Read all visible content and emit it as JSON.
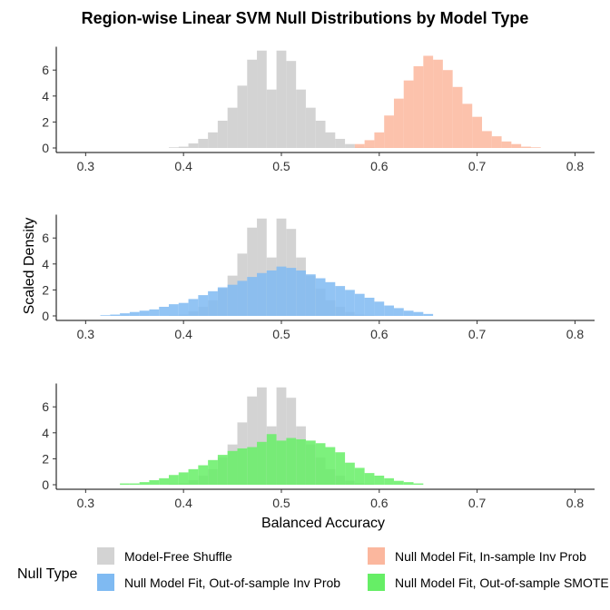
{
  "chart_data": {
    "type": "bar",
    "title": "Region-wise Linear SVM Null Distributions by Model Type",
    "xlabel": "Balanced Accuracy",
    "ylabel": "Scaled Density",
    "xlim": [
      0.27,
      0.82
    ],
    "ylim": [
      0,
      7.8
    ],
    "x_ticks": [
      0.3,
      0.4,
      0.5,
      0.6,
      0.7,
      0.8
    ],
    "y_ticks": [
      0,
      2,
      4,
      6
    ],
    "bin_width": 0.01,
    "grid": false,
    "legend": {
      "title": "Null Type",
      "position": "bottom",
      "entries": [
        {
          "label": "Model-Free Shuffle",
          "color": "#d3d3d3"
        },
        {
          "label": "Null Model Fit, In-sample Inv Prob",
          "color": "#fbb79e"
        },
        {
          "label": "Null Model Fit, Out-of-sample Inv Prob",
          "color": "#7fbaf2"
        },
        {
          "label": "Null Model Fit, Out-of-sample SMOTE",
          "color": "#66ee66"
        }
      ]
    },
    "shuffle": {
      "name": "Model-Free Shuffle",
      "color": "#d3d3d3",
      "x": [
        0.39,
        0.4,
        0.41,
        0.42,
        0.43,
        0.44,
        0.45,
        0.46,
        0.47,
        0.48,
        0.49,
        0.5,
        0.51,
        0.52,
        0.53,
        0.54,
        0.55,
        0.56,
        0.57,
        0.58,
        0.59
      ],
      "values": [
        0.05,
        0.1,
        0.35,
        0.7,
        1.2,
        2.1,
        3.1,
        4.8,
        6.8,
        7.5,
        4.5,
        7.5,
        6.7,
        4.5,
        3.1,
        2.1,
        1.2,
        0.7,
        0.3,
        0.1,
        0.05
      ]
    },
    "panels": [
      {
        "name": "Null Model Fit, In-sample Inv Prob",
        "color": "#fbb79e",
        "x": [
          0.58,
          0.59,
          0.6,
          0.61,
          0.62,
          0.63,
          0.64,
          0.65,
          0.66,
          0.67,
          0.68,
          0.69,
          0.7,
          0.71,
          0.72,
          0.73,
          0.74,
          0.75,
          0.76
        ],
        "values": [
          0.3,
          0.6,
          1.2,
          2.5,
          3.8,
          5.2,
          6.3,
          7.1,
          6.8,
          6.0,
          4.7,
          3.4,
          2.4,
          1.3,
          0.9,
          0.5,
          0.3,
          0.1,
          0.05
        ]
      },
      {
        "name": "Null Model Fit, Out-of-sample Inv Prob",
        "color": "#7fbaf2",
        "x": [
          0.32,
          0.33,
          0.34,
          0.35,
          0.36,
          0.37,
          0.38,
          0.39,
          0.4,
          0.41,
          0.42,
          0.43,
          0.44,
          0.45,
          0.46,
          0.47,
          0.48,
          0.49,
          0.5,
          0.51,
          0.52,
          0.53,
          0.54,
          0.55,
          0.56,
          0.57,
          0.58,
          0.59,
          0.6,
          0.61,
          0.62,
          0.63,
          0.64,
          0.65
        ],
        "values": [
          0.05,
          0.1,
          0.2,
          0.3,
          0.4,
          0.5,
          0.7,
          0.9,
          1.0,
          1.3,
          1.6,
          1.9,
          2.2,
          2.4,
          2.7,
          3.0,
          3.3,
          3.5,
          3.8,
          3.7,
          3.5,
          3.2,
          2.9,
          2.6,
          2.3,
          2.0,
          1.7,
          1.4,
          1.1,
          0.8,
          0.6,
          0.4,
          0.3,
          0.15
        ]
      },
      {
        "name": "Null Model Fit, Out-of-sample SMOTE",
        "color": "#66ee66",
        "x": [
          0.34,
          0.35,
          0.36,
          0.37,
          0.38,
          0.39,
          0.4,
          0.41,
          0.42,
          0.43,
          0.44,
          0.45,
          0.46,
          0.47,
          0.48,
          0.49,
          0.5,
          0.51,
          0.52,
          0.53,
          0.54,
          0.55,
          0.56,
          0.57,
          0.58,
          0.59,
          0.6,
          0.61,
          0.62,
          0.63,
          0.64
        ],
        "values": [
          0.1,
          0.1,
          0.2,
          0.35,
          0.5,
          0.75,
          0.95,
          1.2,
          1.5,
          1.9,
          2.3,
          2.6,
          2.8,
          2.9,
          3.3,
          3.9,
          3.4,
          3.6,
          3.5,
          3.4,
          3.2,
          2.9,
          2.5,
          1.7,
          1.3,
          0.9,
          0.7,
          0.5,
          0.3,
          0.2,
          0.1
        ]
      }
    ]
  }
}
